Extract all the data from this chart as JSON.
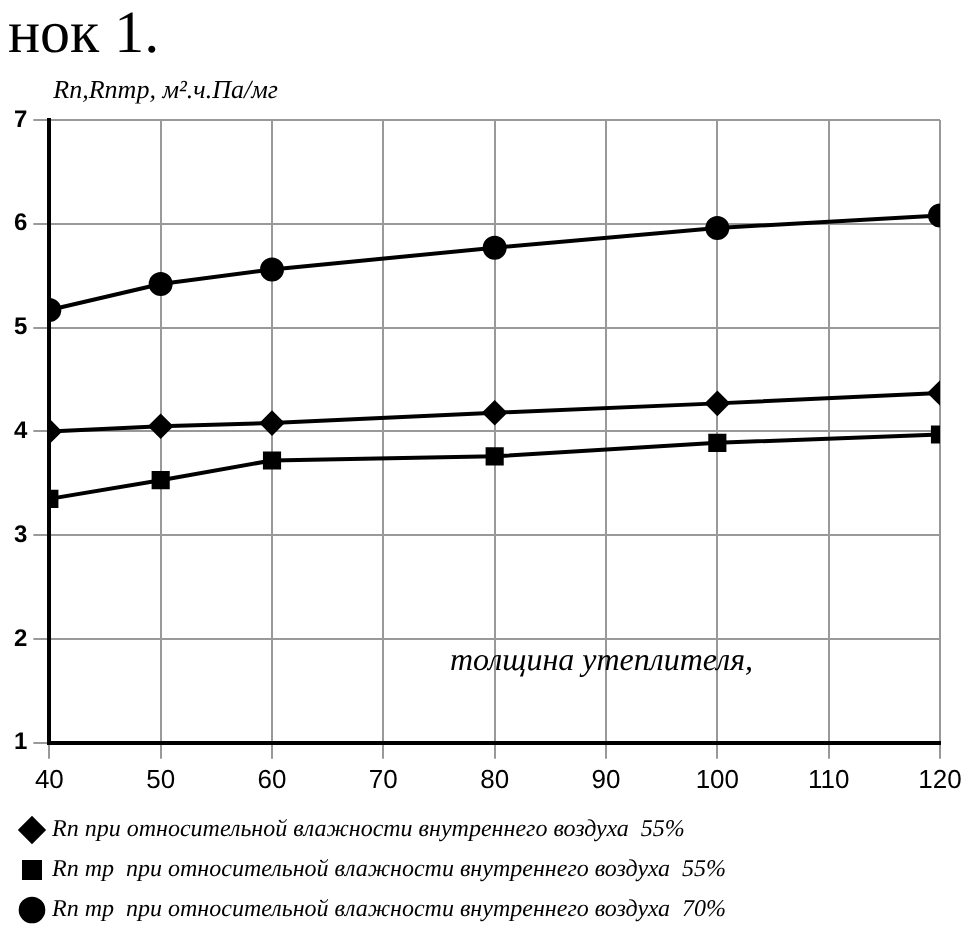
{
  "chart_data": {
    "type": "line",
    "title": "нок 1.",
    "ylabel": "Rп,Rптр, м².ч.Па/мг",
    "annotations": [
      "толщина утеплителя,"
    ],
    "x": [
      40,
      50,
      60,
      80,
      100,
      120
    ],
    "xlim": [
      40,
      120
    ],
    "xticks": [
      40,
      50,
      60,
      70,
      80,
      90,
      100,
      110,
      120
    ],
    "ylim": [
      1,
      7
    ],
    "yticks": [
      1,
      2,
      3,
      4,
      5,
      6,
      7
    ],
    "grid": true,
    "legend": "bottom",
    "series": [
      {
        "name": "Rп при относительной влажности внутреннего воздуха  55%",
        "color": "#000000",
        "marker": "diamond",
        "values": [
          4.0,
          4.05,
          4.08,
          4.18,
          4.27,
          4.37
        ]
      },
      {
        "name": "Rп тр  при относительной влажности внутреннего воздуха  55%",
        "color": "#000000",
        "marker": "square",
        "values": [
          3.35,
          3.53,
          3.72,
          3.76,
          3.89,
          3.97
        ]
      },
      {
        "name": "Rп тр  при относительной влажности внутреннего воздуха  70%",
        "color": "#000000",
        "marker": "circle",
        "values": [
          5.17,
          5.42,
          5.56,
          5.77,
          5.96,
          6.08
        ]
      }
    ]
  }
}
